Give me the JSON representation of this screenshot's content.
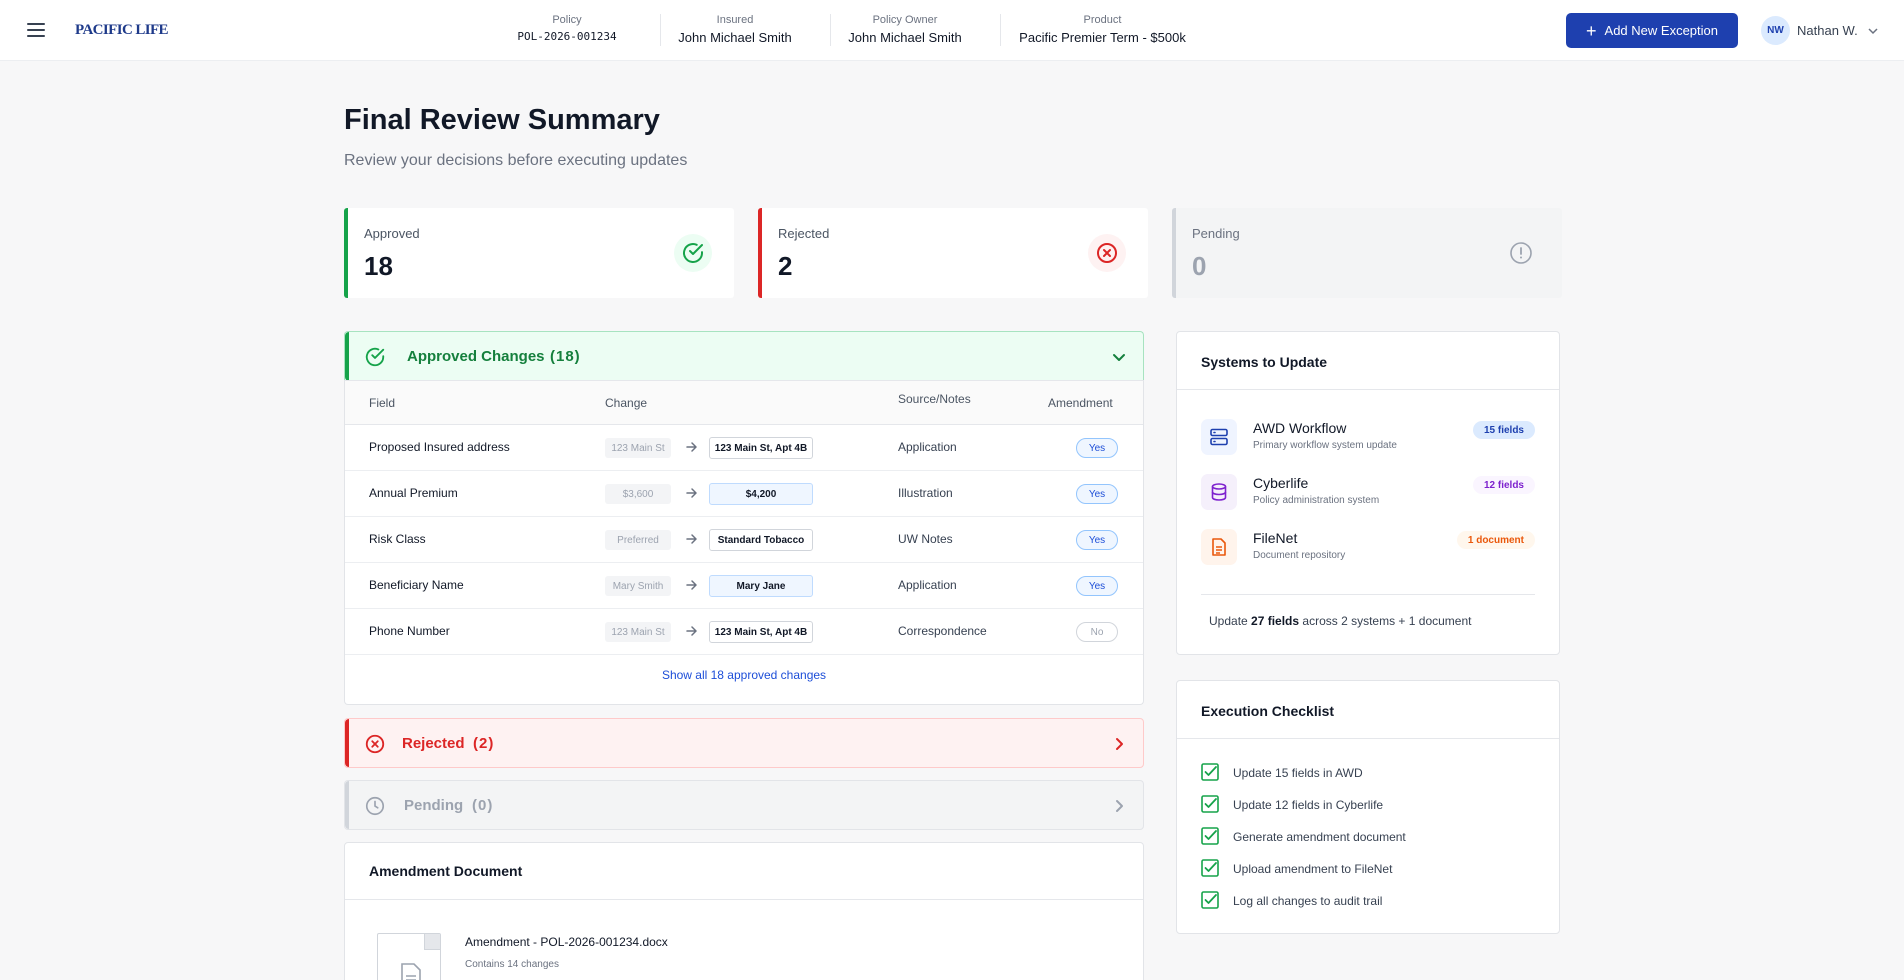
{
  "header": {
    "logo": "PACIFIC LIFE",
    "policy_label": "Policy",
    "policy_value": "POL-2026-001234",
    "insured_label": "Insured",
    "insured_value": "John Michael Smith",
    "owner_label": "Policy Owner",
    "owner_value": "John Michael Smith",
    "product_label": "Product",
    "product_value": "Pacific Premier Term - $500k",
    "add_exception_label": "Add New Exception",
    "user_initials": "NW",
    "user_name": "Nathan W."
  },
  "page": {
    "title": "Final Review Summary",
    "subtitle": "Review your decisions before executing updates"
  },
  "stats": {
    "approved_label": "Approved",
    "approved_value": "18",
    "rejected_label": "Rejected",
    "rejected_value": "2",
    "pending_label": "Pending",
    "pending_value": "0"
  },
  "approved_section": {
    "title": "Approved Changes",
    "count": "(18)",
    "columns": {
      "field": "Field",
      "change": "Change",
      "source": "Source/Notes",
      "amendment": "Amendment"
    },
    "rows": [
      {
        "field": "Proposed Insured address",
        "old": "123 Main St",
        "new": "123 Main St, Apt 4B",
        "source": "Application",
        "amendment": "Yes"
      },
      {
        "field": "Annual Premium",
        "old": "$3,600",
        "new": "$4,200",
        "source": "Illustration",
        "amendment": "Yes"
      },
      {
        "field": "Risk Class",
        "old": "Preferred",
        "new": "Standard Tobacco",
        "source": "UW Notes",
        "amendment": "Yes"
      },
      {
        "field": "Beneficiary Name",
        "old": "Mary Smith",
        "new": "Mary Jane",
        "source": "Application",
        "amendment": "Yes"
      },
      {
        "field": "Phone Number",
        "old": "123 Main St",
        "new": "123 Main St, Apt 4B",
        "source": "Correspondence",
        "amendment": "No"
      }
    ],
    "show_all_label": "Show all 18  approved changes"
  },
  "rejected_section": {
    "title": "Rejected",
    "count": "(2)"
  },
  "pending_section": {
    "title": "Pending",
    "count": "(0)"
  },
  "amendment_doc": {
    "title": "Amendment Document",
    "file_name": "Amendment - POL-2026-001234.docx",
    "file_sub": "Contains 14 changes"
  },
  "systems": {
    "title": "Systems to Update",
    "items": [
      {
        "name": "AWD Workflow",
        "desc": "Primary workflow system update",
        "badge": "15 fields",
        "icon": "server-icon"
      },
      {
        "name": "Cyberlife",
        "desc": "Policy administration system",
        "badge": "12 fields",
        "icon": "database-icon"
      },
      {
        "name": "FileNet",
        "desc": "Document repository",
        "badge": "1 document",
        "icon": "document-icon"
      }
    ],
    "summary_pre": "Update ",
    "summary_bold": "27 fields",
    "summary_post": " across 2 systems + 1 document"
  },
  "checklist": {
    "title": "Execution Checklist",
    "items": [
      "Update 15 fields in AWD",
      "Update 12 fields in Cyberlife",
      "Generate amendment document",
      "Upload amendment to FileNet",
      "Log all changes to audit trail"
    ]
  },
  "colors": {
    "brand": "#1e40af",
    "approved": "#16a34a",
    "rejected": "#dc2626",
    "pending": "#9ca3af"
  }
}
